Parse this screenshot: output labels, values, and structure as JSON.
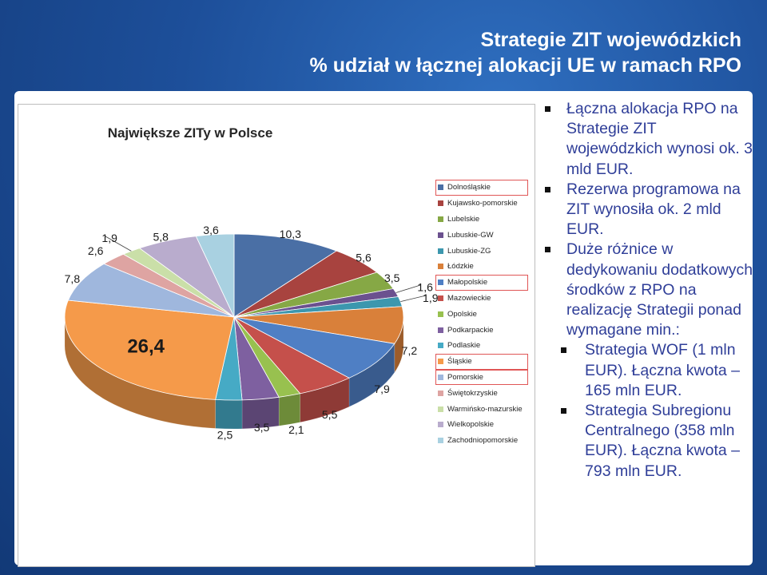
{
  "slide": {
    "title_line1": "Strategie ZIT wojewódzkich",
    "title_line2": "% udział w łącznej alokacji UE w ramach RPO"
  },
  "bullets": [
    {
      "level": 1,
      "text": "Łączna alokacja RPO na Strategie ZIT wojewódzkich wynosi ok. 3 mld EUR."
    },
    {
      "level": 1,
      "text": "Rezerwa programowa na ZIT wynosiła ok. 2 mld EUR."
    },
    {
      "level": 1,
      "text": "Duże różnice w dedykowaniu dodatkowych środków z RPO na realizację Strategii ponad wymagane min.:"
    },
    {
      "level": 2,
      "text": "Strategia WOF (1 mln EUR). Łączna kwota – 165 mln EUR."
    },
    {
      "level": 2,
      "text": "Strategia Subregionu Centralnego (358 mln EUR). Łączna kwota – 793 mln EUR."
    }
  ],
  "chart_data": {
    "type": "pie",
    "title": "Największe ZITy w Polsce",
    "legend_position": "right",
    "highlighted": [
      "Dolnośląskie",
      "Małopolskie",
      "Śląskie",
      "Pomorskie"
    ],
    "slices": [
      {
        "name": "Dolnośląskie",
        "label": "10,3",
        "value": 10.3,
        "color": "#4a6fa5"
      },
      {
        "name": "Kujawsko-pomorskie",
        "label": "5,6",
        "value": 5.6,
        "color": "#a8433f"
      },
      {
        "name": "Lubelskie",
        "label": "3,5",
        "value": 3.5,
        "color": "#86a845"
      },
      {
        "name": "Lubuskie-GW",
        "label": "1,6",
        "value": 1.6,
        "color": "#6b518f"
      },
      {
        "name": "Lubuskie-ZG",
        "label": "1,9",
        "value": 1.9,
        "color": "#3c97ae"
      },
      {
        "name": "Łódzkie",
        "label": "7,2",
        "value": 7.2,
        "color": "#d9803a"
      },
      {
        "name": "Małopolskie",
        "label": "7,9",
        "value": 7.9,
        "color": "#4f7fc4"
      },
      {
        "name": "Mazowieckie",
        "label": "5,5",
        "value": 5.5,
        "color": "#c5504b"
      },
      {
        "name": "Opolskie",
        "label": "2,1",
        "value": 2.1,
        "color": "#98c14f"
      },
      {
        "name": "Podkarpackie",
        "label": "3,5",
        "value": 3.5,
        "color": "#7e60a0"
      },
      {
        "name": "Podlaskie",
        "label": "2,5",
        "value": 2.5,
        "color": "#46aac5"
      },
      {
        "name": "Śląskie",
        "label": "26,4",
        "value": 26.4,
        "color": "#f59a4a"
      },
      {
        "name": "Pomorskie",
        "label": "7,8",
        "value": 7.8,
        "color": "#9fb7dd"
      },
      {
        "name": "Świętokrzyskie",
        "label": "2,6",
        "value": 2.6,
        "color": "#dea4a2"
      },
      {
        "name": "Warmińsko-mazurskie",
        "label": "1,9",
        "value": 1.9,
        "color": "#cadfa8"
      },
      {
        "name": "Wielkopolskie",
        "label": "5,8",
        "value": 5.8,
        "color": "#b9accd"
      },
      {
        "name": "Zachodniopomorskie",
        "label": "3,6",
        "value": 3.6,
        "color": "#a9d1e1"
      }
    ]
  }
}
